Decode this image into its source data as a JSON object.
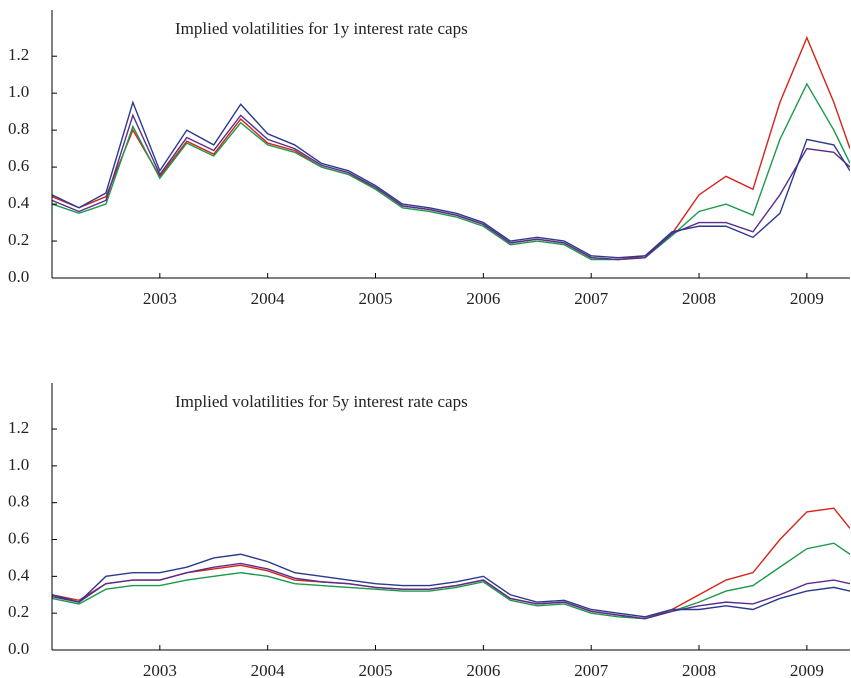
{
  "chart_data": [
    {
      "type": "line",
      "title": "Implied volatilities for 1y interest rate caps",
      "x": [
        2002.0,
        2002.25,
        2002.5,
        2002.75,
        2003.0,
        2003.25,
        2003.5,
        2003.75,
        2004.0,
        2004.25,
        2004.5,
        2004.75,
        2005.0,
        2005.25,
        2005.5,
        2005.75,
        2006.0,
        2006.25,
        2006.5,
        2006.75,
        2007.0,
        2007.25,
        2007.5,
        2007.75,
        2008.0,
        2008.25,
        2008.5,
        2008.75,
        2009.0,
        2009.25,
        2009.4
      ],
      "series": [
        {
          "color": "#d62418",
          "values": [
            0.44,
            0.38,
            0.44,
            0.8,
            0.55,
            0.74,
            0.67,
            0.86,
            0.73,
            0.69,
            0.6,
            0.56,
            0.49,
            0.39,
            0.37,
            0.34,
            0.29,
            0.19,
            0.21,
            0.19,
            0.11,
            0.1,
            0.12,
            0.24,
            0.45,
            0.55,
            0.48,
            0.95,
            1.3,
            0.95,
            0.7
          ]
        },
        {
          "color": "#1a9a4a",
          "values": [
            0.4,
            0.35,
            0.4,
            0.82,
            0.54,
            0.73,
            0.66,
            0.84,
            0.72,
            0.68,
            0.6,
            0.56,
            0.48,
            0.38,
            0.36,
            0.33,
            0.28,
            0.18,
            0.2,
            0.18,
            0.1,
            0.1,
            0.11,
            0.23,
            0.36,
            0.4,
            0.34,
            0.75,
            1.05,
            0.8,
            0.62
          ]
        },
        {
          "color": "#5b2d8e",
          "values": [
            0.42,
            0.36,
            0.42,
            0.88,
            0.56,
            0.76,
            0.69,
            0.88,
            0.75,
            0.7,
            0.61,
            0.57,
            0.49,
            0.39,
            0.37,
            0.34,
            0.29,
            0.19,
            0.21,
            0.19,
            0.11,
            0.1,
            0.11,
            0.24,
            0.3,
            0.3,
            0.25,
            0.45,
            0.7,
            0.68,
            0.6
          ]
        },
        {
          "color": "#2a3a8f",
          "values": [
            0.45,
            0.38,
            0.46,
            0.95,
            0.58,
            0.8,
            0.72,
            0.94,
            0.78,
            0.72,
            0.62,
            0.58,
            0.5,
            0.4,
            0.38,
            0.35,
            0.3,
            0.2,
            0.22,
            0.2,
            0.12,
            0.11,
            0.12,
            0.25,
            0.28,
            0.28,
            0.22,
            0.35,
            0.75,
            0.72,
            0.58
          ]
        }
      ],
      "xlim": [
        2002.0,
        2009.4
      ],
      "ylim": [
        0,
        1.45
      ],
      "xticks": [
        2003,
        2004,
        2005,
        2006,
        2007,
        2008,
        2009
      ],
      "yticks": [
        {
          "value": 0,
          "label": "0.0"
        },
        0.2,
        0.4,
        0.6,
        0.8,
        {
          "value": 1,
          "label": "1.0"
        },
        1.2
      ]
    },
    {
      "type": "line",
      "title": "Implied volatilities for 5y interest rate caps",
      "x": [
        2002.0,
        2002.25,
        2002.5,
        2002.75,
        2003.0,
        2003.25,
        2003.5,
        2003.75,
        2004.0,
        2004.25,
        2004.5,
        2004.75,
        2005.0,
        2005.25,
        2005.5,
        2005.75,
        2006.0,
        2006.25,
        2006.5,
        2006.75,
        2007.0,
        2007.25,
        2007.5,
        2007.75,
        2008.0,
        2008.25,
        2008.5,
        2008.75,
        2009.0,
        2009.25,
        2009.4
      ],
      "series": [
        {
          "color": "#d62418",
          "values": [
            0.3,
            0.27,
            0.36,
            0.38,
            0.38,
            0.42,
            0.44,
            0.46,
            0.43,
            0.38,
            0.37,
            0.36,
            0.34,
            0.33,
            0.33,
            0.35,
            0.38,
            0.28,
            0.25,
            0.26,
            0.21,
            0.19,
            0.17,
            0.22,
            0.3,
            0.38,
            0.42,
            0.6,
            0.75,
            0.77,
            0.66
          ]
        },
        {
          "color": "#1a9a4a",
          "values": [
            0.28,
            0.25,
            0.33,
            0.35,
            0.35,
            0.38,
            0.4,
            0.42,
            0.4,
            0.36,
            0.35,
            0.34,
            0.33,
            0.32,
            0.32,
            0.34,
            0.37,
            0.27,
            0.24,
            0.25,
            0.2,
            0.18,
            0.17,
            0.21,
            0.26,
            0.32,
            0.35,
            0.45,
            0.55,
            0.58,
            0.52
          ]
        },
        {
          "color": "#5b2d8e",
          "values": [
            0.29,
            0.26,
            0.36,
            0.38,
            0.38,
            0.42,
            0.45,
            0.47,
            0.44,
            0.39,
            0.37,
            0.36,
            0.34,
            0.33,
            0.33,
            0.35,
            0.38,
            0.28,
            0.25,
            0.26,
            0.21,
            0.19,
            0.17,
            0.21,
            0.24,
            0.26,
            0.25,
            0.3,
            0.36,
            0.38,
            0.36
          ]
        },
        {
          "color": "#2a3a8f",
          "values": [
            0.3,
            0.26,
            0.4,
            0.42,
            0.42,
            0.45,
            0.5,
            0.52,
            0.48,
            0.42,
            0.4,
            0.38,
            0.36,
            0.35,
            0.35,
            0.37,
            0.4,
            0.3,
            0.26,
            0.27,
            0.22,
            0.2,
            0.18,
            0.22,
            0.22,
            0.24,
            0.22,
            0.28,
            0.32,
            0.34,
            0.32
          ]
        }
      ],
      "xlim": [
        2002.0,
        2009.4
      ],
      "ylim": [
        0,
        1.45
      ],
      "xticks": [
        2003,
        2004,
        2005,
        2006,
        2007,
        2008,
        2009
      ],
      "yticks": [
        {
          "value": 0,
          "label": "0.0"
        },
        0.2,
        0.4,
        0.6,
        0.8,
        {
          "value": 1,
          "label": "1.0"
        },
        1.2
      ]
    }
  ]
}
